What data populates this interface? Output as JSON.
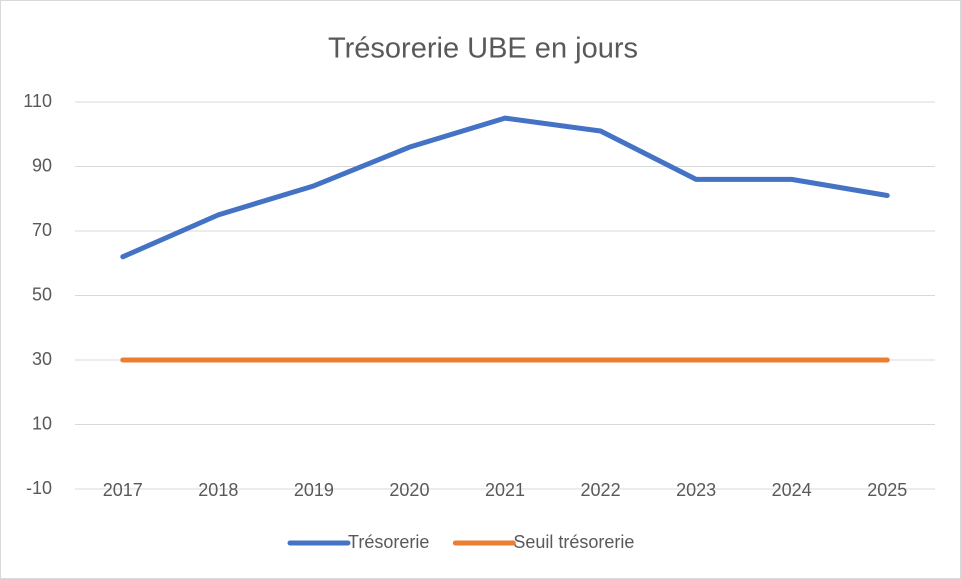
{
  "chart_data": {
    "type": "line",
    "title": "Trésorerie UBE en jours",
    "categories": [
      "2017",
      "2018",
      "2019",
      "2020",
      "2021",
      "2022",
      "2023",
      "2024",
      "2025"
    ],
    "series": [
      {
        "name": "Trésorerie",
        "color": "#4472c4",
        "values": [
          62,
          75,
          84,
          96,
          105,
          101,
          86,
          86,
          81
        ]
      },
      {
        "name": "Seuil trésorerie",
        "color": "#ed7d31",
        "values": [
          30,
          30,
          30,
          30,
          30,
          30,
          30,
          30,
          30
        ]
      }
    ],
    "ylim": [
      -10,
      110
    ],
    "yticks": [
      -10,
      10,
      30,
      50,
      70,
      90,
      110
    ],
    "grid": true,
    "legend": "bottom"
  }
}
